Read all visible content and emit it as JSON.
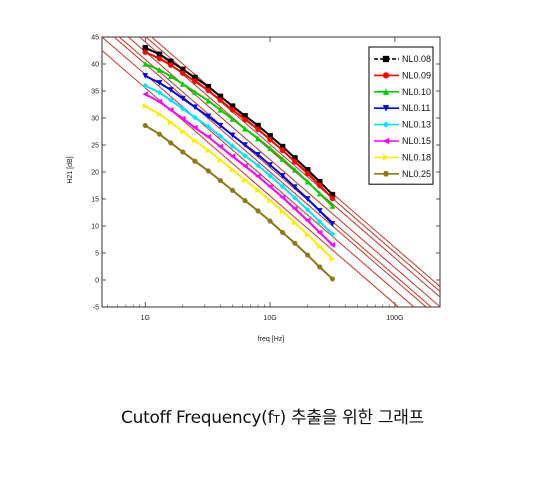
{
  "caption": {
    "before": "Cutoff Frequency(f",
    "sub": "T",
    "after": ") 추출을 위한 그래프"
  },
  "chart_data": {
    "type": "line",
    "title": "",
    "xlabel": "freq [Hz]",
    "ylabel": "H21 [dB]",
    "xscale": "log",
    "xlim": [
      0.45,
      230
    ],
    "ylim": [
      -5,
      45
    ],
    "x_ticks": [
      {
        "value": 1,
        "label": "1G"
      },
      {
        "value": 10,
        "label": "10G"
      },
      {
        "value": 100,
        "label": "100G"
      }
    ],
    "y_ticks": [
      -5,
      0,
      5,
      10,
      15,
      20,
      25,
      30,
      35,
      40,
      45
    ],
    "grid": false,
    "legend_position": "top-right",
    "markers_x": [
      1.0,
      1.3,
      1.6,
      2.0,
      2.5,
      3.2,
      4.0,
      5.0,
      6.3,
      8.0,
      10,
      12.6,
      15.8,
      20,
      25,
      31.6
    ],
    "series": [
      {
        "name": "NL0.08",
        "color": "#000000",
        "marker": "square",
        "fT": 200,
        "markers_y": [
          43.0,
          41.8,
          40.5,
          39.0,
          37.5,
          35.8,
          34.0,
          32.2,
          30.4,
          28.6,
          26.7,
          24.7,
          22.6,
          20.4,
          18.2,
          15.8
        ]
      },
      {
        "name": "NL0.09",
        "color": "#ff0000",
        "marker": "circle",
        "fT": 180,
        "markers_y": [
          42.2,
          41.0,
          39.8,
          38.3,
          36.8,
          35.1,
          33.3,
          31.5,
          29.7,
          27.9,
          26.0,
          24.0,
          21.9,
          19.7,
          17.5,
          15.1
        ]
      },
      {
        "name": "NL0.10",
        "color": "#00cc00",
        "marker": "triangle-up",
        "fT": 160,
        "markers_y": [
          40.0,
          38.9,
          37.7,
          36.3,
          34.8,
          33.2,
          31.5,
          29.8,
          28.0,
          26.2,
          24.4,
          22.4,
          20.4,
          18.2,
          16.0,
          13.7
        ]
      },
      {
        "name": "NL0.11",
        "color": "#0000ee",
        "marker": "triangle-down",
        "fT": 130,
        "markers_y": [
          37.8,
          36.5,
          35.2,
          33.6,
          32.0,
          30.3,
          28.6,
          26.8,
          25.0,
          23.2,
          21.3,
          19.3,
          17.2,
          15.0,
          12.8,
          10.4
        ]
      },
      {
        "name": "NL0.13",
        "color": "#00e5ff",
        "marker": "diamond",
        "fT": 110,
        "markers_y": [
          36.0,
          34.7,
          33.3,
          31.7,
          30.1,
          28.4,
          26.6,
          24.8,
          23.0,
          21.2,
          19.3,
          17.3,
          15.2,
          13.0,
          10.8,
          8.5
        ]
      },
      {
        "name": "NL0.15",
        "color": "#ff00ff",
        "marker": "triangle-left",
        "fT": 100,
        "markers_y": [
          34.4,
          33.0,
          31.5,
          29.9,
          28.2,
          26.5,
          24.7,
          22.9,
          21.1,
          19.2,
          17.3,
          15.3,
          13.2,
          11.0,
          8.8,
          6.5
        ]
      },
      {
        "name": "NL0.18",
        "color": "#ffee00",
        "marker": "triangle-right",
        "fT": 80,
        "markers_y": [
          32.2,
          30.7,
          29.2,
          27.5,
          25.8,
          24.0,
          22.2,
          20.4,
          18.5,
          16.6,
          14.7,
          12.7,
          10.6,
          8.4,
          6.2,
          3.9
        ]
      },
      {
        "name": "NL0.25",
        "color": "#8b7a1a",
        "marker": "hexagon",
        "fT": 60,
        "markers_y": [
          28.6,
          27.0,
          25.4,
          23.7,
          22.0,
          20.2,
          18.4,
          16.6,
          14.7,
          12.8,
          10.9,
          8.8,
          6.8,
          4.6,
          2.4,
          0.2
        ]
      }
    ]
  }
}
